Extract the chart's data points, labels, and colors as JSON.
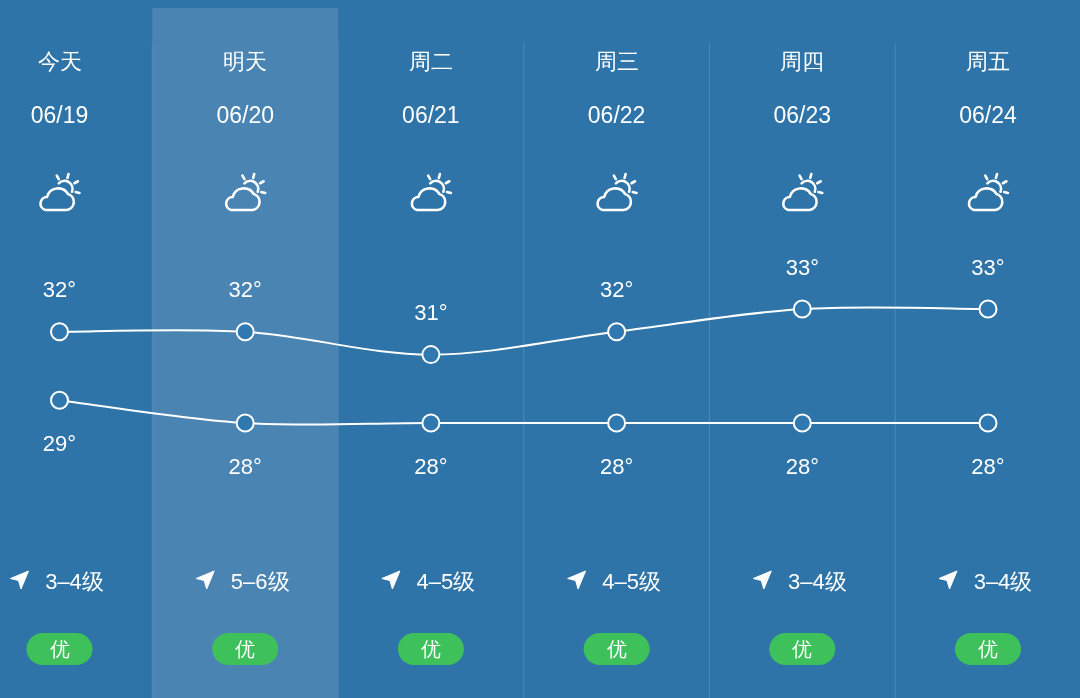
{
  "chart_data": {
    "type": "line",
    "categories": [
      "今天",
      "明天",
      "周二",
      "周三",
      "周四",
      "周五"
    ],
    "series": [
      {
        "color": "#ffffff",
        "values": [
          32,
          32,
          31,
          32,
          33,
          33
        ],
        "value_labels": [
          "32°",
          "32°",
          "31°",
          "32°",
          "33°",
          "33°"
        ]
      },
      {
        "color": "#ffffff",
        "values": [
          29,
          28,
          28,
          28,
          28,
          28
        ],
        "value_labels": [
          "29°",
          "28°",
          "28°",
          "28°",
          "28°",
          "28°"
        ]
      }
    ],
    "marker": "circle",
    "grid": "x",
    "bands": [
      {
        "axis": "x",
        "from": "明天",
        "to": "明天",
        "color": "#4a84b3"
      }
    ],
    "annotations": [
      "06/19",
      "06/20",
      "06/21",
      "06/22",
      "06/23",
      "06/24",
      "3–4级",
      "5–6级",
      "4–5级",
      "4–5级",
      "3–4级",
      "3–4级",
      "优",
      "优",
      "优",
      "优",
      "优",
      "优"
    ]
  }
}
